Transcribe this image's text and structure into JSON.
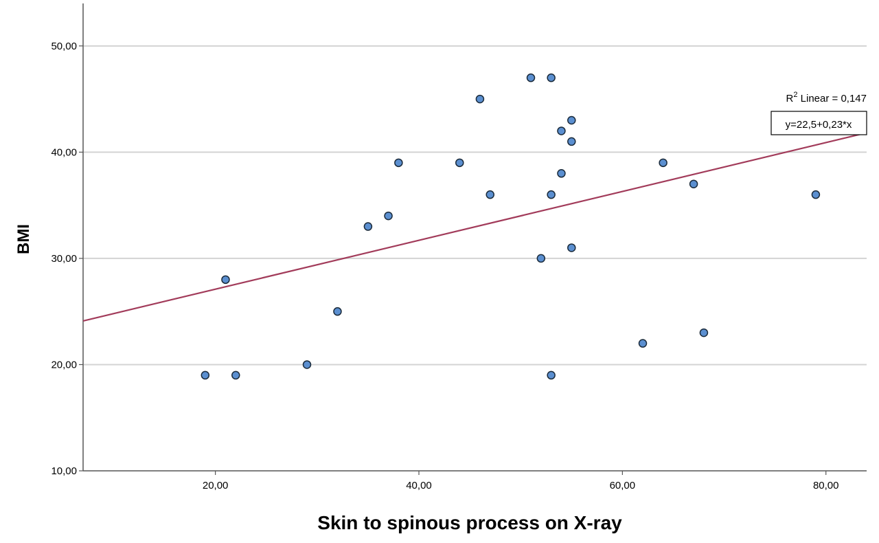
{
  "chart_data": {
    "type": "scatter",
    "xlabel": "Skin to spinous process on X-ray",
    "ylabel": "BMI",
    "xlim": [
      7,
      84
    ],
    "ylim": [
      10,
      54
    ],
    "x_ticks": [
      20,
      40,
      60,
      80
    ],
    "x_tick_labels": [
      "20,00",
      "40,00",
      "60,00",
      "80,00"
    ],
    "y_ticks": [
      10,
      20,
      30,
      40,
      50
    ],
    "y_tick_labels": [
      "10,00",
      "20,00",
      "30,00",
      "40,00",
      "50,00"
    ],
    "grid": "horizontal",
    "points": [
      {
        "x": 19,
        "y": 19
      },
      {
        "x": 21,
        "y": 28
      },
      {
        "x": 22,
        "y": 19
      },
      {
        "x": 29,
        "y": 20
      },
      {
        "x": 32,
        "y": 25
      },
      {
        "x": 35,
        "y": 33
      },
      {
        "x": 37,
        "y": 34
      },
      {
        "x": 38,
        "y": 39
      },
      {
        "x": 44,
        "y": 39
      },
      {
        "x": 46,
        "y": 45
      },
      {
        "x": 47,
        "y": 36
      },
      {
        "x": 51,
        "y": 47
      },
      {
        "x": 52,
        "y": 30
      },
      {
        "x": 53,
        "y": 47
      },
      {
        "x": 53,
        "y": 36
      },
      {
        "x": 53,
        "y": 19
      },
      {
        "x": 54,
        "y": 42
      },
      {
        "x": 54,
        "y": 38
      },
      {
        "x": 55,
        "y": 43
      },
      {
        "x": 55,
        "y": 41
      },
      {
        "x": 55,
        "y": 31
      },
      {
        "x": 62,
        "y": 22
      },
      {
        "x": 64,
        "y": 39
      },
      {
        "x": 67,
        "y": 37
      },
      {
        "x": 68,
        "y": 23
      },
      {
        "x": 79,
        "y": 36
      }
    ],
    "fit_line": {
      "intercept": 22.5,
      "slope": 0.23
    },
    "annotation": {
      "r2_prefix": "R",
      "r2_sup": "2",
      "r2_text": " Linear = 0,147",
      "equation": "y=22,5+0,23*x"
    },
    "colors": {
      "point_fill": "#5b8fd0",
      "point_stroke": "#1a2a3a",
      "fit_line": "#a23b5a",
      "grid": "#d3d3d3",
      "axis": "#555555"
    }
  }
}
